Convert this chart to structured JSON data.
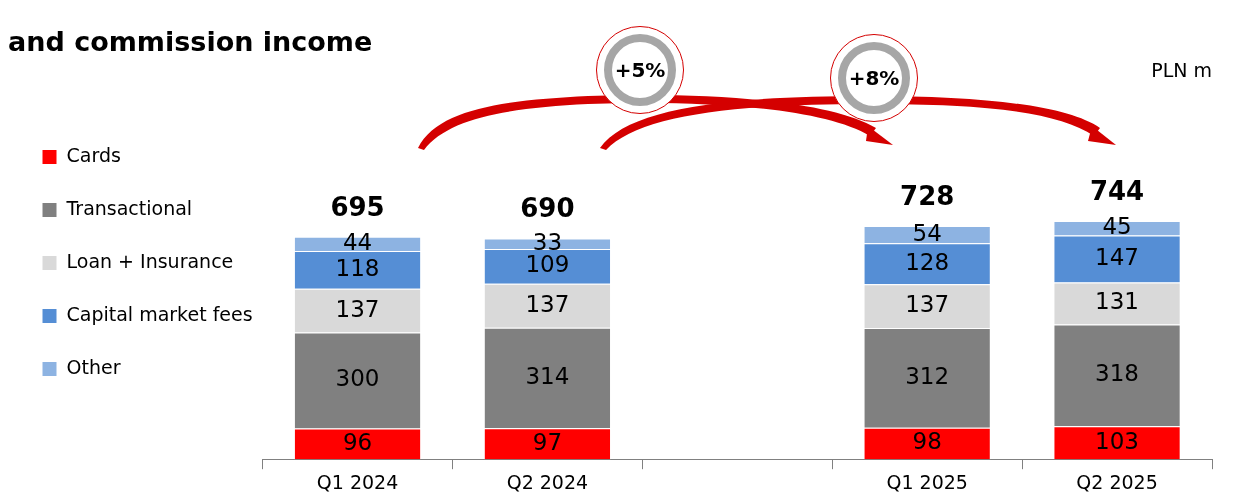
{
  "chart_data": {
    "type": "bar",
    "title": "and commission income",
    "subtitle": "PLN m",
    "stacked": true,
    "data_labels": true,
    "legend": "left",
    "grid": false,
    "categories": [
      "Q1 2024",
      "Q2 2024",
      null,
      "Q1 2025",
      "Q2 2025"
    ],
    "series": [
      {
        "name": "Cards",
        "color": "#ff0000",
        "values": [
          96,
          97,
          null,
          98,
          103
        ]
      },
      {
        "name": "Transactional",
        "color": "#808080",
        "values": [
          300,
          314,
          null,
          312,
          318
        ]
      },
      {
        "name": "Loan + Insurance",
        "color": "#d9d9d9",
        "values": [
          137,
          137,
          null,
          137,
          131
        ]
      },
      {
        "name": "Capital market fees",
        "color": "#558ed5",
        "values": [
          118,
          109,
          null,
          128,
          147
        ]
      },
      {
        "name": "Other",
        "color": "#8db3e2",
        "values": [
          44,
          33,
          null,
          54,
          45
        ]
      }
    ],
    "totals": [
      "695",
      "690",
      null,
      "728",
      "744"
    ],
    "annotations": [
      "+5%",
      "+8%"
    ]
  }
}
